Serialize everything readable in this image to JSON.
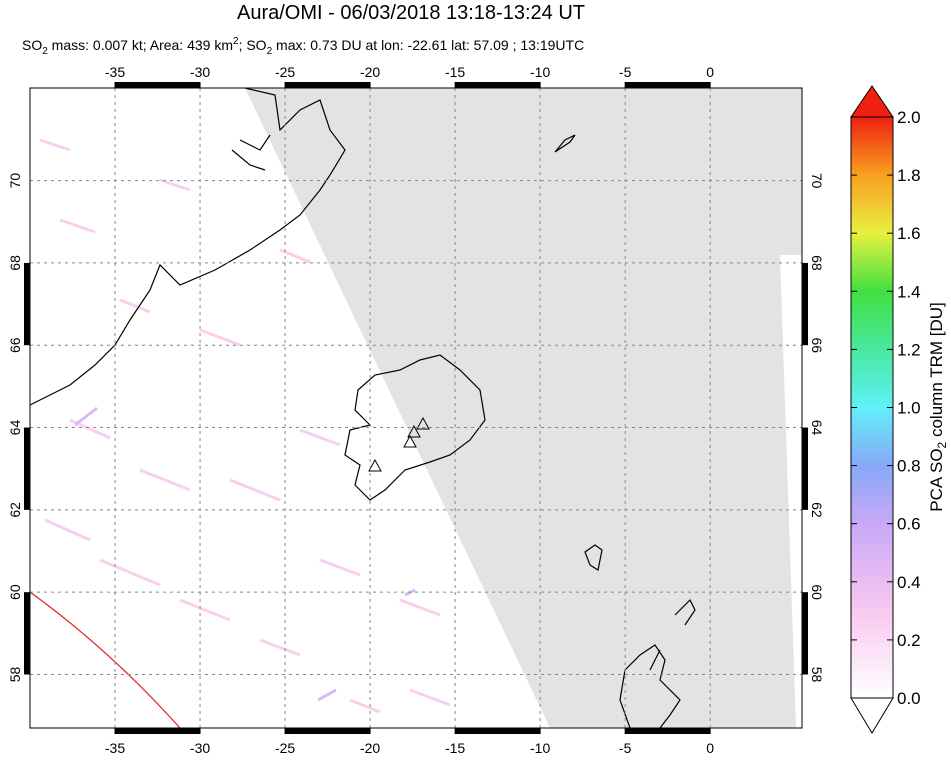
{
  "chart_data": {
    "type": "map",
    "title": "Aura/OMI - 06/03/2018 13:18-13:24 UT",
    "subtitle_parts": [
      "SO",
      "2",
      " mass: 0.007 kt; Area: 439 km",
      "2",
      "; SO",
      "2",
      " max: 0.73 DU at lon: -22.61 lat: 57.09 ; 13:19UTC"
    ],
    "xlim": [
      -40,
      5.4
    ],
    "ylim": [
      56.7,
      72.25
    ],
    "xticks": [
      -35,
      -30,
      -25,
      -20,
      -15,
      -10,
      -5,
      0
    ],
    "yticks": [
      58,
      60,
      62,
      64,
      66,
      68,
      70
    ],
    "grid": true,
    "colorbar": {
      "label_parts": [
        "PCA SO",
        "2",
        " column TRM [DU]"
      ],
      "clim": [
        0,
        2
      ],
      "ticks": [
        {
          "value": 0,
          "label": "0.0"
        },
        {
          "value": 0.2,
          "label": "0.2"
        },
        {
          "value": 0.4,
          "label": "0.4"
        },
        {
          "value": 0.6,
          "label": "0.6"
        },
        {
          "value": 0.8,
          "label": "0.8"
        },
        {
          "value": 1,
          "label": "1.0"
        },
        {
          "value": 1.2,
          "label": "1.2"
        },
        {
          "value": 1.4,
          "label": "1.4"
        },
        {
          "value": 1.6,
          "label": "1.6"
        },
        {
          "value": 1.8,
          "label": "1.8"
        },
        {
          "value": 2,
          "label": "2.0"
        }
      ]
    }
  }
}
